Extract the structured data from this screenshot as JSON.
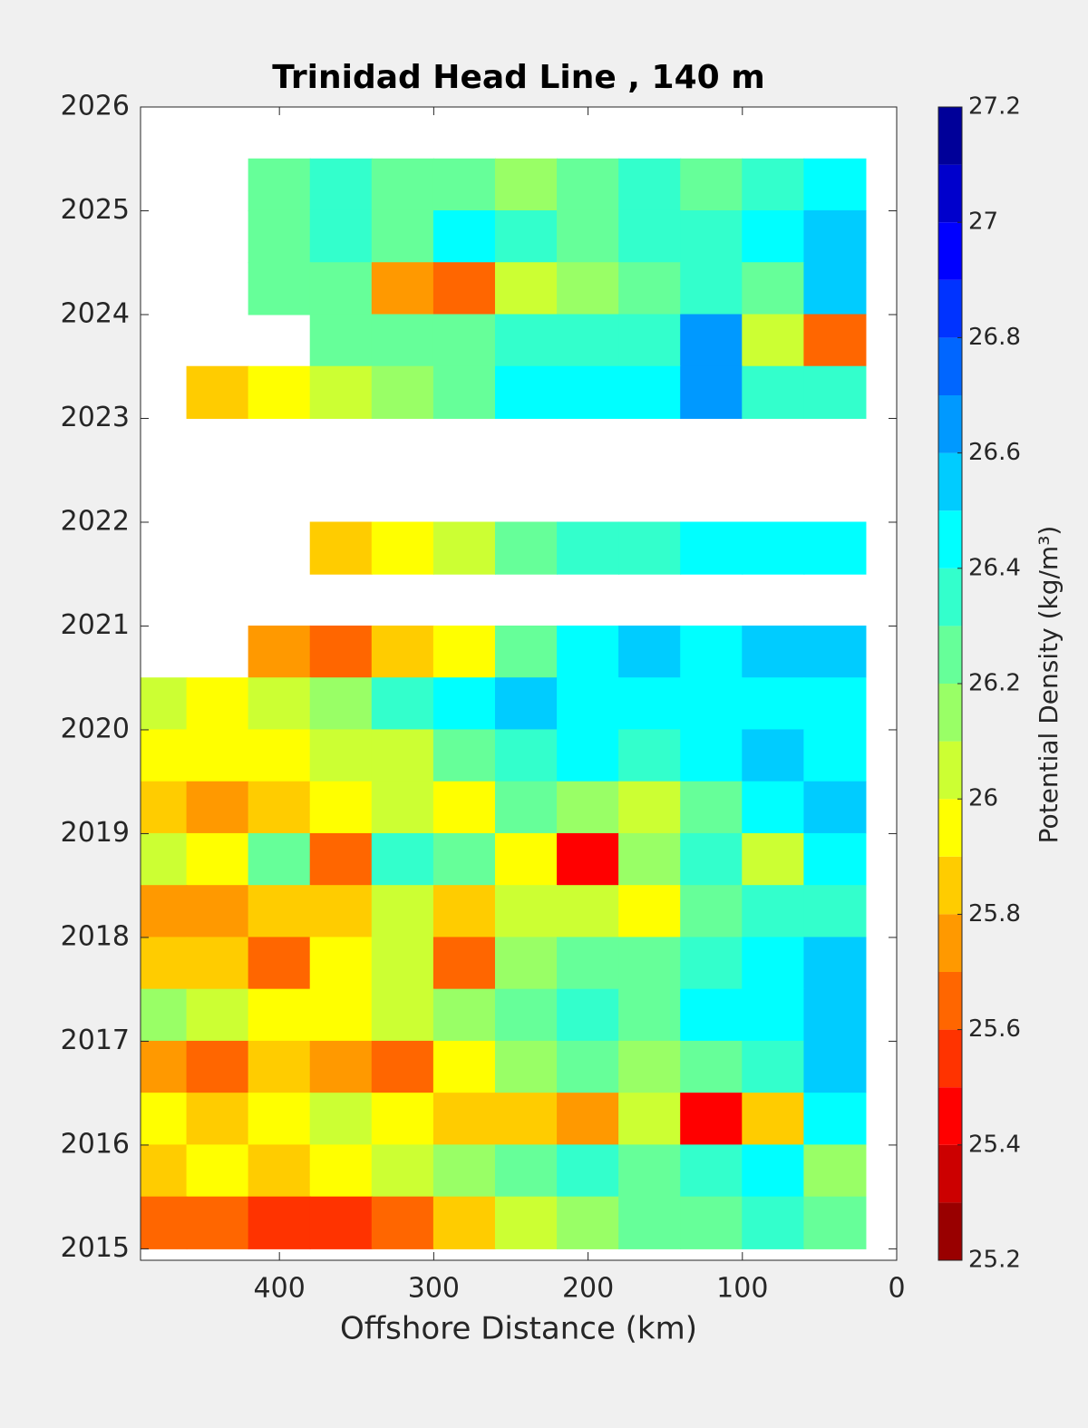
{
  "chart_data": {
    "type": "contourf",
    "title": "Trinidad Head Line , 140 m",
    "xlabel": "Offshore Distance (km)",
    "xlim": [
      490,
      0
    ],
    "xticks": [
      400,
      300,
      200,
      100,
      0
    ],
    "ylim": [
      2014.89,
      2026
    ],
    "yticks": [
      2015,
      2016,
      2017,
      2018,
      2019,
      2020,
      2021,
      2022,
      2023,
      2024,
      2025,
      2026
    ],
    "x": [
      480,
      440,
      400,
      360,
      320,
      280,
      240,
      200,
      160,
      120,
      80,
      40
    ],
    "y": [
      2025.25,
      2024.75,
      2024.25,
      2023.75,
      2023.25,
      2022.75,
      2022.25,
      2021.75,
      2021.25,
      2020.75,
      2020.25,
      2019.75,
      2019.25,
      2018.75,
      2018.25,
      2017.75,
      2017.25,
      2016.75,
      2016.25,
      2015.75,
      2015.25
    ],
    "z": [
      [
        null,
        null,
        26.2,
        26.3,
        26.2,
        26.2,
        26.1,
        26.2,
        26.3,
        26.2,
        26.3,
        26.4
      ],
      [
        null,
        null,
        26.2,
        26.3,
        26.2,
        26.4,
        26.3,
        26.2,
        26.3,
        26.3,
        26.4,
        26.5
      ],
      [
        null,
        null,
        26.2,
        26.2,
        25.7,
        25.6,
        26.0,
        26.1,
        26.2,
        26.3,
        26.2,
        26.5
      ],
      [
        null,
        null,
        null,
        26.2,
        26.2,
        26.2,
        26.3,
        26.3,
        26.3,
        26.6,
        26.0,
        25.6
      ],
      [
        null,
        25.8,
        25.9,
        26.0,
        26.1,
        26.2,
        26.4,
        26.4,
        26.4,
        26.6,
        26.3,
        26.3
      ],
      [
        null,
        null,
        null,
        null,
        null,
        null,
        null,
        null,
        null,
        null,
        null,
        null
      ],
      [
        null,
        null,
        null,
        null,
        null,
        null,
        null,
        null,
        null,
        null,
        null,
        null
      ],
      [
        null,
        null,
        null,
        25.8,
        25.9,
        26.0,
        26.2,
        26.3,
        26.3,
        26.4,
        26.4,
        26.4
      ],
      [
        null,
        null,
        null,
        null,
        null,
        null,
        null,
        null,
        null,
        null,
        null,
        null
      ],
      [
        null,
        null,
        25.7,
        25.6,
        25.8,
        25.9,
        26.2,
        26.4,
        26.5,
        26.4,
        26.5,
        26.5
      ],
      [
        26.0,
        25.9,
        26.0,
        26.1,
        26.3,
        26.4,
        26.5,
        26.4,
        26.4,
        26.4,
        26.4,
        26.4
      ],
      [
        25.9,
        25.9,
        25.9,
        26.0,
        26.0,
        26.2,
        26.3,
        26.4,
        26.3,
        26.4,
        26.5,
        26.4
      ],
      [
        25.8,
        25.7,
        25.8,
        25.9,
        26.0,
        25.9,
        26.2,
        26.1,
        26.0,
        26.2,
        26.4,
        26.5
      ],
      [
        26.0,
        25.9,
        26.2,
        25.6,
        26.3,
        26.2,
        25.9,
        25.4,
        26.1,
        26.3,
        26.0,
        26.4
      ],
      [
        25.7,
        25.7,
        25.8,
        25.8,
        26.0,
        25.8,
        26.0,
        26.0,
        25.9,
        26.2,
        26.3,
        26.3
      ],
      [
        25.8,
        25.8,
        25.6,
        25.9,
        26.0,
        25.6,
        26.1,
        26.2,
        26.2,
        26.3,
        26.4,
        26.5
      ],
      [
        26.1,
        26.0,
        25.9,
        25.9,
        26.0,
        26.1,
        26.2,
        26.3,
        26.2,
        26.4,
        26.4,
        26.5
      ],
      [
        25.7,
        25.6,
        25.8,
        25.7,
        25.6,
        25.9,
        26.1,
        26.2,
        26.1,
        26.2,
        26.3,
        26.5
      ],
      [
        25.9,
        25.8,
        25.9,
        26.0,
        25.9,
        25.8,
        25.8,
        25.7,
        26.0,
        25.4,
        25.8,
        26.4
      ],
      [
        25.8,
        25.9,
        25.8,
        25.9,
        26.0,
        26.1,
        26.2,
        26.3,
        26.2,
        26.3,
        26.4,
        26.1
      ],
      [
        25.6,
        25.6,
        25.5,
        25.5,
        25.6,
        25.8,
        26.0,
        26.1,
        26.2,
        26.2,
        26.3,
        26.2
      ]
    ],
    "colormap": "jet",
    "colormap_reversed": true,
    "colorbar": {
      "label": "Potential Density (kg/m³)",
      "levels": [
        25.2,
        25.3,
        25.4,
        25.5,
        25.6,
        25.7,
        25.8,
        25.9,
        26,
        26.1,
        26.2,
        26.3,
        26.4,
        26.5,
        26.6,
        26.7,
        26.8,
        26.9,
        27,
        27.1,
        27.2
      ],
      "ticks": [
        25.2,
        25.4,
        25.6,
        25.8,
        26,
        26.2,
        26.4,
        26.6,
        26.8,
        27,
        27.2
      ]
    }
  }
}
